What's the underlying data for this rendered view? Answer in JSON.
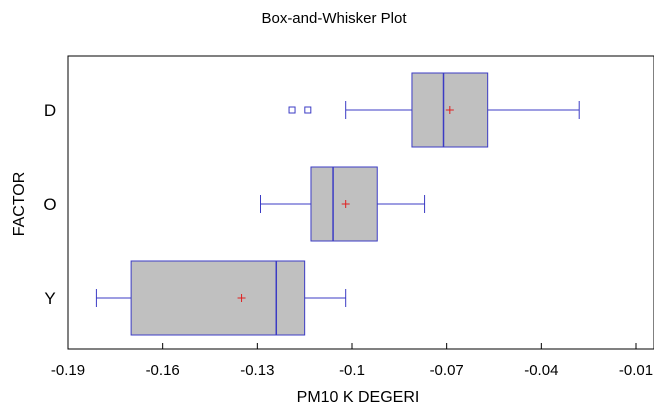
{
  "chart_data": {
    "type": "boxplot",
    "orientation": "horizontal",
    "title": "Box-and-Whisker Plot",
    "xlabel": "PM10 K DEGERI",
    "ylabel": "FACTOR",
    "xlim": [
      -0.19,
      -0.01
    ],
    "xticks": [
      "-0.19",
      "-0.16",
      "-0.13",
      "-0.1",
      "-0.07",
      "-0.04",
      "-0.01"
    ],
    "xtick_values": [
      -0.19,
      -0.16,
      -0.13,
      -0.1,
      -0.07,
      -0.04,
      -0.01
    ],
    "grid": false,
    "categories": [
      "D",
      "O",
      "Y"
    ],
    "boxes": [
      {
        "category": "D",
        "whisker_low": -0.102,
        "q1": -0.081,
        "median": -0.071,
        "q3": -0.057,
        "whisker_high": -0.028,
        "mean": -0.069,
        "outliers": [
          -0.119,
          -0.114
        ]
      },
      {
        "category": "O",
        "whisker_low": -0.129,
        "q1": -0.113,
        "median": -0.106,
        "q3": -0.092,
        "whisker_high": -0.077,
        "mean": -0.102,
        "outliers": []
      },
      {
        "category": "Y",
        "whisker_low": -0.181,
        "q1": -0.17,
        "median": -0.124,
        "q3": -0.115,
        "whisker_high": -0.102,
        "mean": -0.135,
        "outliers": []
      }
    ],
    "colors": {
      "box_fill": "#c0c0c0",
      "box_stroke": "#3b3bc4",
      "whisker": "#3b3bc4",
      "median": "#3b3bc4",
      "mean_marker": "#e02020",
      "outlier": "#3b3bc4",
      "frame": "#000000"
    }
  }
}
